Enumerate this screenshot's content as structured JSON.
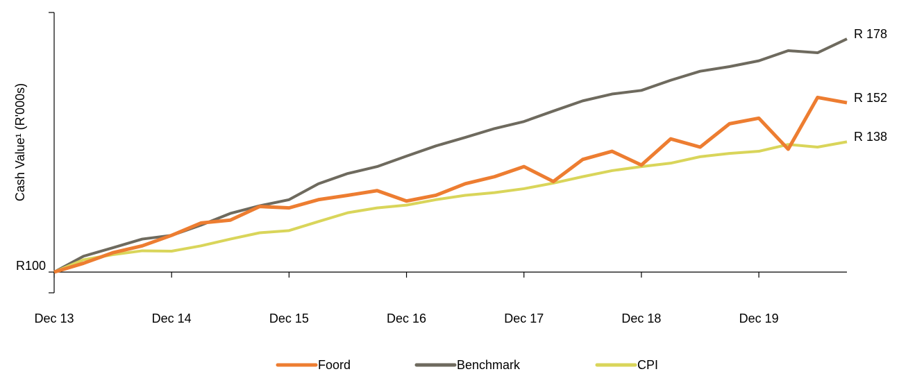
{
  "chart_data": {
    "type": "line",
    "y_label": "Cash Value¹ (R'000s)",
    "log_scale": true,
    "x": [
      "2013-12",
      "2014-03",
      "2014-06",
      "2014-09",
      "2014-12",
      "2015-03",
      "2015-06",
      "2015-09",
      "2015-12",
      "2016-03",
      "2016-06",
      "2016-09",
      "2016-12",
      "2017-03",
      "2017-06",
      "2017-09",
      "2017-12",
      "2018-03",
      "2018-06",
      "2018-09",
      "2018-12",
      "2019-03",
      "2019-06",
      "2019-09",
      "2019-12",
      "2020-03",
      "2020-06",
      "2020-09"
    ],
    "xlim": [
      "2013-12",
      "2020-09"
    ],
    "xticks": [
      {
        "value": "2013-12",
        "label": "Dec 13"
      },
      {
        "value": "2014-12",
        "label": "Dec 14"
      },
      {
        "value": "2015-12",
        "label": "Dec 15"
      },
      {
        "value": "2016-12",
        "label": "Dec 16"
      },
      {
        "value": "2017-12",
        "label": "Dec 17"
      },
      {
        "value": "2018-12",
        "label": "Dec 18"
      },
      {
        "value": "2019-12",
        "label": "Dec 19"
      }
    ],
    "ylim": [
      95,
      190
    ],
    "yticks": [
      {
        "value": 100,
        "label": "R100"
      }
    ],
    "legend": "bottom",
    "series": [
      {
        "name": "Foord",
        "color": "#ED7D31",
        "width": 5,
        "end_label": "R 152",
        "values": [
          100,
          102.2,
          104.9,
          106.7,
          109.5,
          112.9,
          113.7,
          117.6,
          117.2,
          119.6,
          120.9,
          122.3,
          119.2,
          120.9,
          124.4,
          126.6,
          129.8,
          125.1,
          132.1,
          134.8,
          130.3,
          139.0,
          136.2,
          144.3,
          146.3,
          135.5,
          154.0,
          152
        ]
      },
      {
        "name": "Benchmark",
        "color": "#6E6A5E",
        "width": 4,
        "end_label": "R 178",
        "values": [
          100,
          104.0,
          106.2,
          108.5,
          109.5,
          112.3,
          115.6,
          117.8,
          119.6,
          124.4,
          127.6,
          129.8,
          133.2,
          136.6,
          139.5,
          142.6,
          145.1,
          148.9,
          152.7,
          155.3,
          156.7,
          160.7,
          164.3,
          166.2,
          168.6,
          172.9,
          172.0,
          178
        ]
      },
      {
        "name": "CPI",
        "color": "#D9D55A",
        "width": 4,
        "end_label": "R 138",
        "values": [
          100,
          103.1,
          104.4,
          105.4,
          105.3,
          106.7,
          108.5,
          110.2,
          110.8,
          113.3,
          115.8,
          117.2,
          118.0,
          119.6,
          120.9,
          121.7,
          122.9,
          124.6,
          126.6,
          128.5,
          129.8,
          130.9,
          133.0,
          134.1,
          134.8,
          137.1,
          136.2,
          138
        ]
      }
    ]
  }
}
